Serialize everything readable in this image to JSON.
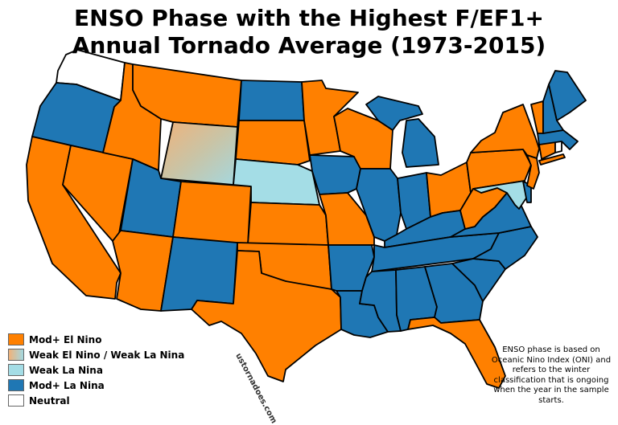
{
  "title": {
    "line1": "ENSO Phase with the Highest F/EF1+",
    "line2": "Annual Tornado Average (1973-2015)"
  },
  "colors": {
    "mod_el_nino": "#ff8000",
    "weak": "#cdc7aa",
    "weak_la_nina": "#a4dde6",
    "mod_la_nina": "#1f77b4",
    "neutral": "#ffffff",
    "outline": "#000000"
  },
  "legend": [
    {
      "key": "mod_el_nino",
      "label": "Mod+ El Nino"
    },
    {
      "key": "weak",
      "label": "Weak El Nino / Weak La Nina"
    },
    {
      "key": "weak_la_nina",
      "label": "Weak La Nina"
    },
    {
      "key": "mod_la_nina",
      "label": "Mod+ La Nina"
    },
    {
      "key": "neutral",
      "label": "Neutral"
    }
  ],
  "note": "ENSO phase is based on Oceanic Nino Index (ONI) and refers to the winter classification that is ongoing when the year in the sample starts.",
  "watermark": "ustornadoes.com",
  "states": {
    "WA": "neutral",
    "OR": "mod_la_nina",
    "CA": "mod_el_nino",
    "ID": "mod_el_nino",
    "NV": "mod_el_nino",
    "MT": "mod_el_nino",
    "WY": "weak",
    "UT": "mod_la_nina",
    "AZ": "mod_el_nino",
    "CO": "mod_el_nino",
    "NM": "mod_la_nina",
    "ND": "mod_la_nina",
    "SD": "mod_el_nino",
    "NE": "weak_la_nina",
    "KS": "mod_el_nino",
    "OK": "mod_el_nino",
    "TX": "mod_el_nino",
    "MN": "mod_el_nino",
    "IA": "mod_la_nina",
    "MO": "mod_el_nino",
    "AR": "mod_la_nina",
    "LA": "mod_la_nina",
    "WI": "mod_el_nino",
    "IL": "mod_la_nina",
    "MI": "mod_la_nina",
    "IN": "mod_la_nina",
    "OH": "mod_el_nino",
    "KY": "mod_la_nina",
    "TN": "mod_la_nina",
    "MS": "mod_la_nina",
    "AL": "mod_la_nina",
    "GA": "mod_la_nina",
    "FL": "mod_el_nino",
    "SC": "mod_la_nina",
    "NC": "mod_la_nina",
    "VA": "mod_la_nina",
    "WV": "mod_el_nino",
    "MD": "weak_la_nina",
    "DE": "mod_la_nina",
    "PA": "mod_el_nino",
    "NJ": "mod_el_nino",
    "NY": "mod_el_nino",
    "CT": "mod_el_nino",
    "RI": "neutral",
    "MA": "mod_la_nina",
    "VT": "mod_el_nino",
    "NH": "mod_la_nina",
    "ME": "mod_la_nina"
  }
}
